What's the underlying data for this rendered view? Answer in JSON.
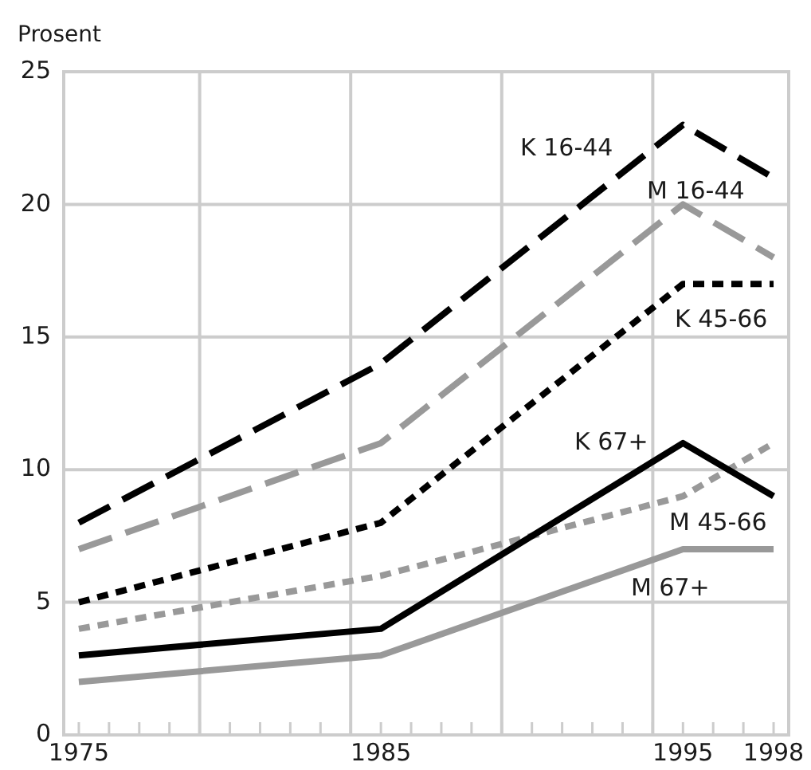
{
  "chart_data": {
    "type": "line",
    "ylabel": "Prosent",
    "x": [
      1975,
      1985,
      1995,
      1998
    ],
    "xlim": [
      1974.5,
      1998.5
    ],
    "xticks": [
      1975,
      {
        "value": 1976,
        "label": null
      },
      {
        "value": 1977,
        "label": null
      },
      {
        "value": 1978,
        "label": null
      },
      {
        "value": 1979,
        "label": null
      },
      {
        "value": 1980,
        "label": null
      },
      {
        "value": 1981,
        "label": null
      },
      {
        "value": 1982,
        "label": null
      },
      {
        "value": 1983,
        "label": null
      },
      {
        "value": 1984,
        "label": null
      },
      1985,
      {
        "value": 1986,
        "label": null
      },
      {
        "value": 1987,
        "label": null
      },
      {
        "value": 1988,
        "label": null
      },
      {
        "value": 1989,
        "label": null
      },
      {
        "value": 1990,
        "label": null
      },
      {
        "value": 1991,
        "label": null
      },
      {
        "value": 1992,
        "label": null
      },
      {
        "value": 1993,
        "label": null
      },
      {
        "value": 1994,
        "label": null
      },
      1995,
      {
        "value": 1996,
        "label": null
      },
      {
        "value": 1997,
        "label": null
      },
      1998
    ],
    "ylim": [
      0,
      25
    ],
    "yticks": [
      0,
      5,
      10,
      15,
      20,
      25
    ],
    "grid": "y",
    "marker": "none",
    "ref_lines": [
      {
        "axis": "x",
        "value": 1979,
        "color": "#cccccc"
      },
      {
        "axis": "x",
        "value": 1984,
        "color": "#cccccc"
      },
      {
        "axis": "x",
        "value": 1989,
        "color": "#cccccc"
      },
      {
        "axis": "x",
        "value": 1994,
        "color": "#cccccc"
      }
    ],
    "series": [
      {
        "name": "K 16-44",
        "color": "#000000",
        "line_style": "dashed",
        "values": [
          8,
          14,
          23,
          21
        ]
      },
      {
        "name": "M 16-44",
        "color": "#999999",
        "line_style": "dashed",
        "values": [
          7,
          11,
          20,
          18
        ]
      },
      {
        "name": "K 45-66",
        "color": "#000000",
        "line_style": "dotted",
        "values": [
          5,
          8,
          17,
          17
        ]
      },
      {
        "name": "M 45-66",
        "color": "#999999",
        "line_style": "dotted",
        "values": [
          4,
          6,
          9,
          11
        ]
      },
      {
        "name": "K 67+",
        "color": "#000000",
        "line_style": "solid",
        "values": [
          3,
          4,
          11,
          9
        ]
      },
      {
        "name": "M 67+",
        "color": "#999999",
        "line_style": "solid",
        "values": [
          2,
          3,
          7,
          7
        ]
      }
    ]
  }
}
